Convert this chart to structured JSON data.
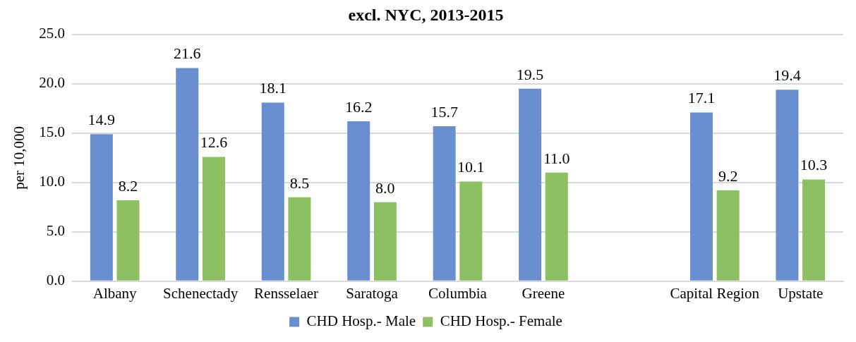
{
  "chart_data": {
    "type": "bar",
    "title": "excl. NYC, 2013-2015",
    "ylabel": "per 10,000",
    "categories": [
      "Albany",
      "Schenectady",
      "Rensselaer",
      "Saratoga",
      "Columbia",
      "Greene",
      null,
      "Capital Region",
      "Upstate"
    ],
    "series": [
      {
        "name": "CHD Hosp.- Male",
        "color": "#6a8fd0",
        "values": [
          14.9,
          21.6,
          18.1,
          16.2,
          15.7,
          19.5,
          null,
          17.1,
          19.4
        ],
        "value_labels": [
          "14.9",
          "21.6",
          "18.1",
          "16.2",
          "15.7",
          "19.5",
          null,
          "17.1",
          "19.4"
        ]
      },
      {
        "name": "CHD Hosp.- Female",
        "color": "#8dc063",
        "values": [
          8.2,
          12.6,
          8.5,
          8.0,
          10.1,
          11.0,
          null,
          9.2,
          10.3
        ],
        "value_labels": [
          "8.2",
          "12.6",
          "8.5",
          "8.0",
          "10.1",
          "11.0",
          null,
          "9.2",
          "10.3"
        ]
      }
    ],
    "ylim": [
      0,
      25
    ],
    "yticks": [
      {
        "value": 0,
        "label": "0.0"
      },
      {
        "value": 5,
        "label": "5.0"
      },
      {
        "value": 10,
        "label": "10.0"
      },
      {
        "value": 15,
        "label": "15.0"
      },
      {
        "value": 20,
        "label": "20.0"
      },
      {
        "value": 25,
        "label": "25.0"
      }
    ],
    "grid": "y",
    "legend": "bottom"
  }
}
